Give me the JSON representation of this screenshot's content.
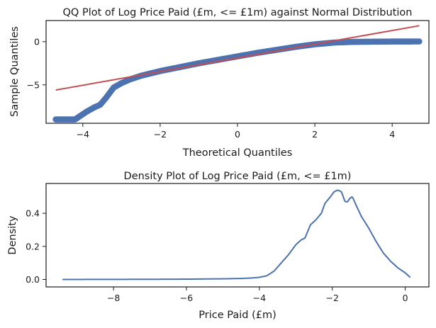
{
  "chart_data": [
    {
      "type": "scatter",
      "title": "QQ Plot of Log Price Paid (£m, <= £1m) against Normal Distribution",
      "xlabel": "Theoretical Quantiles",
      "ylabel": "Sample Quantiles",
      "xlim": [
        -4.95,
        4.95
      ],
      "ylim": [
        -9.45,
        2.45
      ],
      "xticks": [
        -4,
        -2,
        0,
        2,
        4
      ],
      "yticks": [
        0,
        -5
      ],
      "grid": false,
      "colors": {
        "points": "#4c72b0",
        "line": "#c44e52"
      },
      "reference_line": {
        "x": [
          -4.7,
          4.7
        ],
        "y": [
          -5.6,
          1.85
        ]
      },
      "sample_curve": {
        "x": [
          -4.7,
          -4.2,
          -4.1,
          -3.9,
          -3.7,
          -3.55,
          -3.4,
          -3.3,
          -3.2,
          -3.0,
          -2.8,
          -2.5,
          -2.0,
          -1.5,
          -1.0,
          -0.5,
          0.0,
          0.5,
          1.0,
          1.5,
          2.0,
          2.5,
          3.0,
          3.5,
          4.0,
          4.7
        ],
        "y": [
          -9.0,
          -9.0,
          -8.7,
          -8.1,
          -7.6,
          -7.3,
          -6.5,
          -5.9,
          -5.3,
          -4.8,
          -4.4,
          -3.95,
          -3.4,
          -2.95,
          -2.5,
          -2.1,
          -1.7,
          -1.3,
          -0.95,
          -0.6,
          -0.3,
          -0.1,
          -0.02,
          0.0,
          0.02,
          0.03
        ]
      }
    },
    {
      "type": "line",
      "title": "Density Plot of Log Price Paid (£m, <= £1m)",
      "xlabel": "Price Paid (£m)",
      "ylabel": "Density",
      "xlim": [
        -9.85,
        0.65
      ],
      "ylim": [
        -0.045,
        0.58
      ],
      "xticks": [
        -8,
        -6,
        -4,
        -2,
        0
      ],
      "yticks": [
        0.0,
        0.2,
        0.4
      ],
      "grid": false,
      "colors": {
        "line": "#4c72b0"
      },
      "series": [
        {
          "x": [
            -9.4,
            -7.0,
            -6.0,
            -5.0,
            -4.5,
            -4.2,
            -4.0,
            -3.8,
            -3.6,
            -3.4,
            -3.2,
            -3.0,
            -2.85,
            -2.75,
            -2.6,
            -2.45,
            -2.3,
            -2.2,
            -2.05,
            -1.95,
            -1.85,
            -1.75,
            -1.65,
            -1.58,
            -1.52,
            -1.45,
            -1.35,
            -1.2,
            -1.0,
            -0.8,
            -0.6,
            -0.4,
            -0.2,
            0.0,
            0.1,
            0.15
          ],
          "y": [
            0.0,
            0.001,
            0.002,
            0.004,
            0.006,
            0.009,
            0.013,
            0.022,
            0.05,
            0.1,
            0.15,
            0.21,
            0.24,
            0.25,
            0.33,
            0.36,
            0.4,
            0.46,
            0.5,
            0.53,
            0.54,
            0.53,
            0.47,
            0.47,
            0.49,
            0.5,
            0.45,
            0.38,
            0.31,
            0.23,
            0.16,
            0.11,
            0.07,
            0.04,
            0.02,
            0.01
          ]
        }
      ]
    }
  ]
}
